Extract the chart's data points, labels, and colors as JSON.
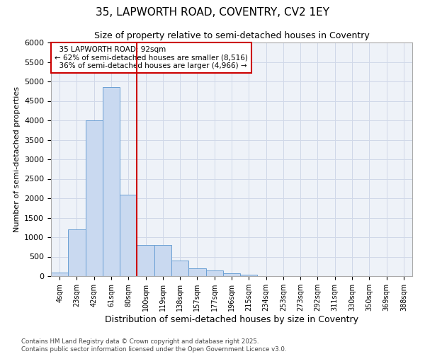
{
  "title1": "35, LAPWORTH ROAD, COVENTRY, CV2 1EY",
  "title2": "Size of property relative to semi-detached houses in Coventry",
  "xlabel": "Distribution of semi-detached houses by size in Coventry",
  "ylabel": "Number of semi-detached properties",
  "property_size": 92,
  "property_label": "35 LAPWORTH ROAD: 92sqm",
  "pct_smaller": 62,
  "pct_larger": 36,
  "n_smaller": 8516,
  "n_larger": 4966,
  "bin_labels": [
    "4sqm",
    "23sqm",
    "42sqm",
    "61sqm",
    "80sqm",
    "100sqm",
    "119sqm",
    "138sqm",
    "157sqm",
    "177sqm",
    "196sqm",
    "215sqm",
    "234sqm",
    "253sqm",
    "273sqm",
    "292sqm",
    "311sqm",
    "330sqm",
    "350sqm",
    "369sqm",
    "388sqm"
  ],
  "bar_values": [
    100,
    1200,
    4000,
    4850,
    2100,
    800,
    800,
    400,
    200,
    150,
    80,
    30,
    0,
    0,
    0,
    0,
    0,
    0,
    0,
    0,
    0
  ],
  "ylim": [
    0,
    6000
  ],
  "yticks": [
    0,
    500,
    1000,
    1500,
    2000,
    2500,
    3000,
    3500,
    4000,
    4500,
    5000,
    5500,
    6000
  ],
  "bar_color": "#c9d9f0",
  "bar_edge_color": "#6a9fd4",
  "vline_color": "#cc0000",
  "grid_color": "#d0d8e8",
  "bg_color": "#eef2f8",
  "annotation_box_color": "#cc0000",
  "footer": "Contains HM Land Registry data © Crown copyright and database right 2025.\nContains public sector information licensed under the Open Government Licence v3.0."
}
